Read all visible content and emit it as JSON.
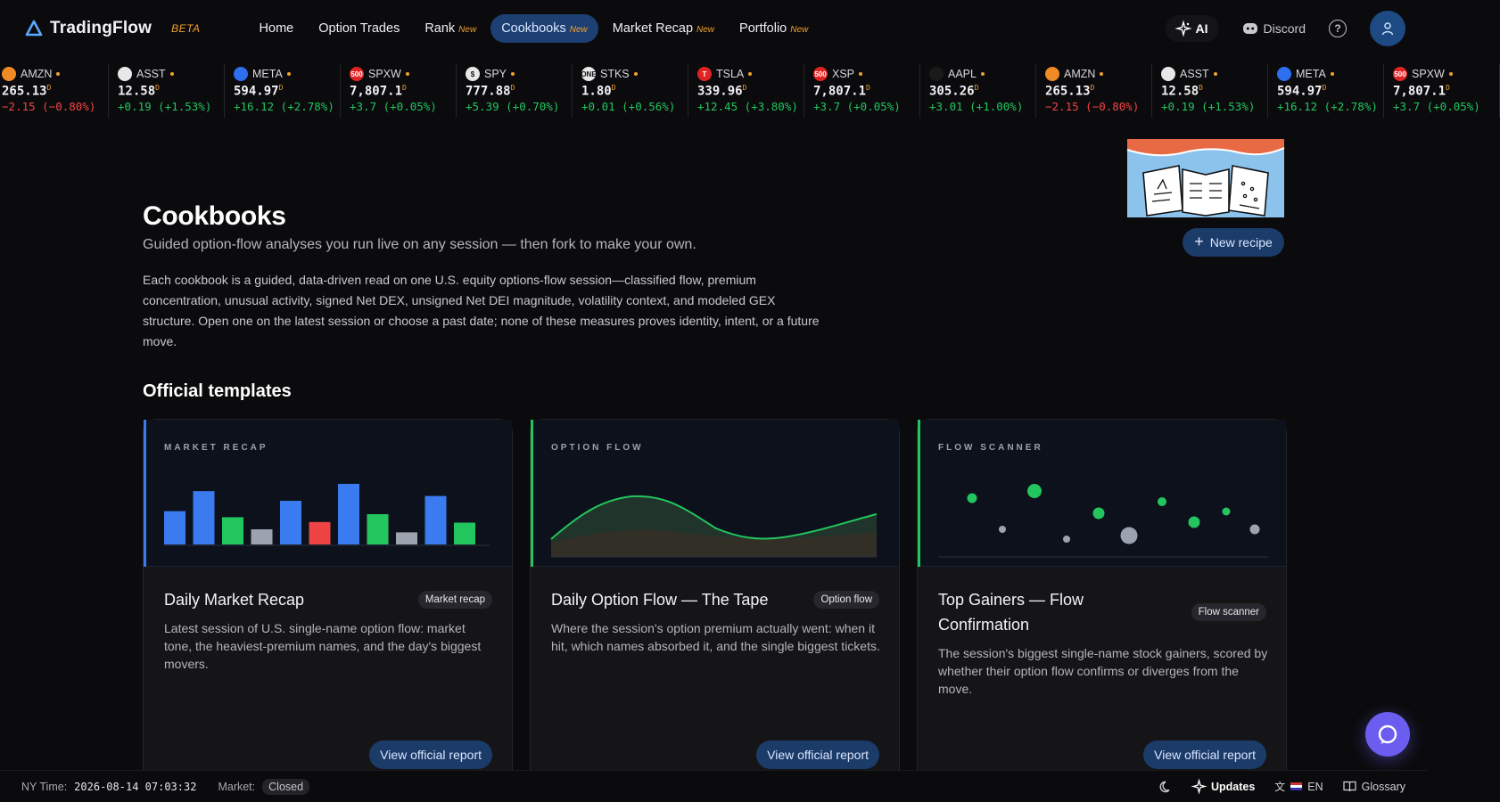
{
  "brand": {
    "name": "TradingFlow",
    "beta": "BETA"
  },
  "nav": {
    "items": [
      {
        "label": "Home",
        "new": ""
      },
      {
        "label": "Option Trades",
        "new": ""
      },
      {
        "label": "Rank",
        "new": "New"
      },
      {
        "label": "Cookbooks",
        "new": "New"
      },
      {
        "label": "Market Recap",
        "new": "New"
      },
      {
        "label": "Portfolio",
        "new": "New"
      }
    ],
    "active": "Cookbooks",
    "ai_label": "AI",
    "discord_label": "Discord"
  },
  "ticker": [
    {
      "sym": "AMZN",
      "price": "265.13",
      "chg": "−2.15 (−0.80%)",
      "dir": "down",
      "icon_color": "#f08a24",
      "icon": ""
    },
    {
      "sym": "ASST",
      "price": "12.58",
      "chg": "+0.19 (+1.53%)",
      "dir": "up",
      "icon_color": "#e8e8e8",
      "icon": ""
    },
    {
      "sym": "META",
      "price": "594.97",
      "chg": "+16.12 (+2.78%)",
      "dir": "up",
      "icon_color": "#2d6ff0",
      "icon": ""
    },
    {
      "sym": "SPXW",
      "price": "7,807.1",
      "chg": "+3.7 (+0.05%)",
      "dir": "up",
      "icon_color": "#e02424",
      "icon": "500"
    },
    {
      "sym": "SPY",
      "price": "777.88",
      "chg": "+5.39 (+0.70%)",
      "dir": "up",
      "icon_color": "#e8e8e8",
      "icon": "$"
    },
    {
      "sym": "STKS",
      "price": "1.80",
      "chg": "+0.01 (+0.56%)",
      "dir": "up",
      "icon_color": "#e8e8e8",
      "icon": "ONE"
    },
    {
      "sym": "TSLA",
      "price": "339.96",
      "chg": "+12.45 (+3.80%)",
      "dir": "up",
      "icon_color": "#e02424",
      "icon": "T"
    },
    {
      "sym": "XSP",
      "price": "7,807.1",
      "chg": "+3.7 (+0.05%)",
      "dir": "up",
      "icon_color": "#e02424",
      "icon": "500"
    },
    {
      "sym": "AAPL",
      "price": "305.26",
      "chg": "+3.01 (+1.00%)",
      "dir": "up",
      "icon_color": "#1a1a1a",
      "icon": ""
    },
    {
      "sym": "AMZN",
      "price": "265.13",
      "chg": "−2.15 (−0.80%)",
      "dir": "down",
      "icon_color": "#f08a24",
      "icon": ""
    },
    {
      "sym": "ASST",
      "price": "12.58",
      "chg": "+0.19 (+1.53%)",
      "dir": "up",
      "icon_color": "#e8e8e8",
      "icon": ""
    },
    {
      "sym": "META",
      "price": "594.97",
      "chg": "+16.12 (+2.78%)",
      "dir": "up",
      "icon_color": "#2d6ff0",
      "icon": ""
    },
    {
      "sym": "SPXW",
      "price": "7,807.1",
      "chg": "+3.7 (+0.05%)",
      "dir": "up",
      "icon_color": "#e02424",
      "icon": "500"
    }
  ],
  "ticker_suffix": "D",
  "hero": {
    "title": "Cookbooks",
    "subtitle": "Guided option-flow analyses you run live on any session — then fork to make your own.",
    "description": "Each cookbook is a guided, data-driven read on one U.S. equity options-flow session—classified flow, premium concentration, unusual activity, signed Net DEX, unsigned Net DEI magnitude, volatility context, and modeled GEX structure. Open one on the latest session or choose a past date; none of these measures proves identity, intent, or a future move.",
    "new_recipe": "New recipe"
  },
  "section_title": "Official templates",
  "cards": [
    {
      "kicker": "MARKET RECAP",
      "title": "Daily Market Recap",
      "badge": "Market recap",
      "description": "Latest session of U.S. single-name option flow: market tone, the heaviest-premium names, and the day's biggest movers.",
      "button": "View official report",
      "accent": "#3b7bf0",
      "bars": [
        {
          "v": 0.55,
          "c": "#3b7bf0"
        },
        {
          "v": 0.88,
          "c": "#3b7bf0"
        },
        {
          "v": 0.45,
          "c": "#22c55e"
        },
        {
          "v": 0.25,
          "c": "#9ca3af"
        },
        {
          "v": 0.72,
          "c": "#3b7bf0"
        },
        {
          "v": 0.37,
          "c": "#ef4444"
        },
        {
          "v": 1.0,
          "c": "#3b7bf0"
        },
        {
          "v": 0.5,
          "c": "#22c55e"
        },
        {
          "v": 0.2,
          "c": "#9ca3af"
        },
        {
          "v": 0.8,
          "c": "#3b7bf0"
        },
        {
          "v": 0.36,
          "c": "#22c55e"
        }
      ]
    },
    {
      "kicker": "OPTION FLOW",
      "title": "Daily Option Flow — The Tape",
      "badge": "Option flow",
      "description": "Where the session's option premium actually went: when it hit, which names absorbed it, and the single biggest tickets.",
      "button": "View official report",
      "accent": "#22c55e"
    },
    {
      "kicker": "FLOW SCANNER",
      "title": "Top Gainers — Flow Confirmation",
      "badge": "Flow scanner",
      "description": "The session's biggest single-name stock gainers, scored by whether their option flow confirms or diverges from the move.",
      "button": "View official report",
      "accent": "#22c55e"
    }
  ],
  "footer": {
    "ny_time_label": "NY Time:",
    "ny_time": "2026-08-14 07:03:32",
    "market_label": "Market:",
    "market_status": "Closed",
    "updates": "Updates",
    "lang": "EN",
    "glossary": "Glossary"
  },
  "colors": {
    "accent": "#1b3b68",
    "up": "#22c55e",
    "down": "#ef4444",
    "beta": "#f0a030"
  }
}
